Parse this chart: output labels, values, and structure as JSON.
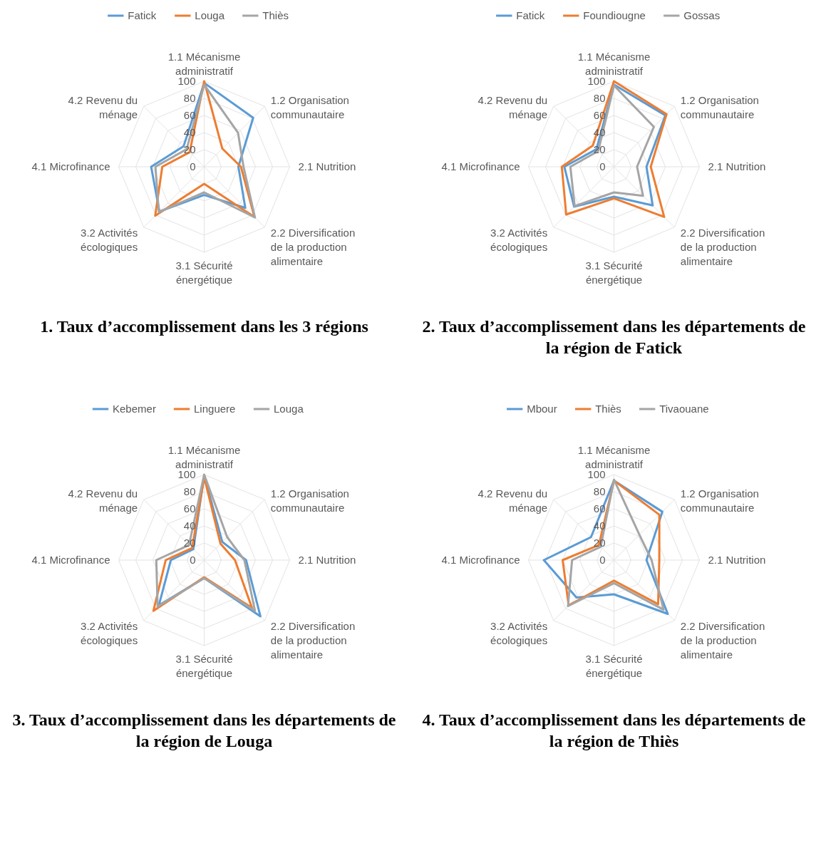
{
  "chart_data": [
    {
      "type": "radar",
      "title": "1. Taux d’accomplissement dans les 3 régions",
      "categories": [
        "1.1 Mécanisme administratif",
        "1.2 Organisation communautaire",
        "2.1 Nutrition",
        "2.2 Diversification de la production alimentaire",
        "3.1 Sécurité énergétique",
        "3.2 Activités écologiques",
        "4.1 Microfinance",
        "4.2 Revenu du ménage"
      ],
      "ylim": [
        0,
        100
      ],
      "yticks": [
        0,
        20,
        40,
        60,
        80,
        100
      ],
      "grid": true,
      "legend": "top",
      "series": [
        {
          "name": "Fatick",
          "color": "#5b9bd5",
          "values": [
            98,
            81,
            40,
            68,
            33,
            74,
            62,
            34
          ]
        },
        {
          "name": "Louga",
          "color": "#ed7d31",
          "values": [
            100,
            30,
            43,
            83,
            20,
            81,
            49,
            24
          ]
        },
        {
          "name": "Thiès",
          "color": "#a5a5a5",
          "values": [
            96,
            56,
            46,
            84,
            30,
            75,
            57,
            29
          ]
        }
      ]
    },
    {
      "type": "radar",
      "title": "2. Taux d’accomplissement dans les départements de la région de Fatick",
      "categories": [
        "1.1 Mécanisme administratif",
        "1.2 Organisation communautaire",
        "2.1 Nutrition",
        "2.2 Diversification de la production alimentaire",
        "3.1 Sécurité énergétique",
        "3.2 Activités écologiques",
        "4.1 Microfinance",
        "4.2 Revenu du ménage"
      ],
      "ylim": [
        0,
        100
      ],
      "yticks": [
        0,
        20,
        40,
        60,
        80,
        100
      ],
      "grid": true,
      "legend": "top",
      "series": [
        {
          "name": "Fatick",
          "color": "#5b9bd5",
          "values": [
            96,
            85,
            38,
            64,
            35,
            66,
            58,
            29
          ]
        },
        {
          "name": "Foundiougne",
          "color": "#ed7d31",
          "values": [
            100,
            87,
            43,
            83,
            37,
            79,
            61,
            35
          ]
        },
        {
          "name": "Gossas",
          "color": "#a5a5a5",
          "values": [
            95,
            66,
            27,
            48,
            30,
            65,
            51,
            26
          ]
        }
      ]
    },
    {
      "type": "radar",
      "title": "3. Taux d’accomplissement dans les départements de la région de Louga",
      "categories": [
        "1.1 Mécanisme administratif",
        "1.2 Organisation communautaire",
        "2.1 Nutrition",
        "2.2 Diversification de la production alimentaire",
        "3.1 Sécurité énergétique",
        "3.2 Activités écologiques",
        "4.1 Microfinance",
        "4.2 Revenu du ménage"
      ],
      "ylim": [
        0,
        100
      ],
      "yticks": [
        0,
        20,
        40,
        60,
        80,
        100
      ],
      "grid": true,
      "legend": "top",
      "series": [
        {
          "name": "Kebemer",
          "color": "#5b9bd5",
          "values": [
            99,
            30,
            49,
            93,
            21,
            75,
            39,
            18
          ]
        },
        {
          "name": "Linguere",
          "color": "#ed7d31",
          "values": [
            97,
            27,
            36,
            79,
            20,
            84,
            45,
            20
          ]
        },
        {
          "name": "Louga",
          "color": "#a5a5a5",
          "values": [
            100,
            38,
            47,
            84,
            21,
            77,
            56,
            25
          ]
        }
      ]
    },
    {
      "type": "radar",
      "title": "4. Taux d’accomplissement dans les départements de la région de Thiès",
      "categories": [
        "1.1 Mécanisme administratif",
        "1.2 Organisation communautaire",
        "2.1 Nutrition",
        "2.2 Diversification de la production alimentaire",
        "3.1 Sécurité énergétique",
        "3.2 Activités écologiques",
        "4.1 Microfinance",
        "4.2 Revenu du ménage"
      ],
      "ylim": [
        0,
        100
      ],
      "yticks": [
        0,
        20,
        40,
        60,
        80,
        100
      ],
      "grid": true,
      "legend": "top",
      "series": [
        {
          "name": "Mbour",
          "color": "#5b9bd5",
          "values": [
            93,
            80,
            38,
            89,
            40,
            62,
            82,
            38
          ]
        },
        {
          "name": "Thiès",
          "color": "#ed7d31",
          "values": [
            93,
            75,
            53,
            73,
            24,
            75,
            60,
            25
          ]
        },
        {
          "name": "Tivaouane",
          "color": "#a5a5a5",
          "values": [
            94,
            42,
            44,
            82,
            27,
            76,
            49,
            22
          ]
        }
      ]
    }
  ]
}
